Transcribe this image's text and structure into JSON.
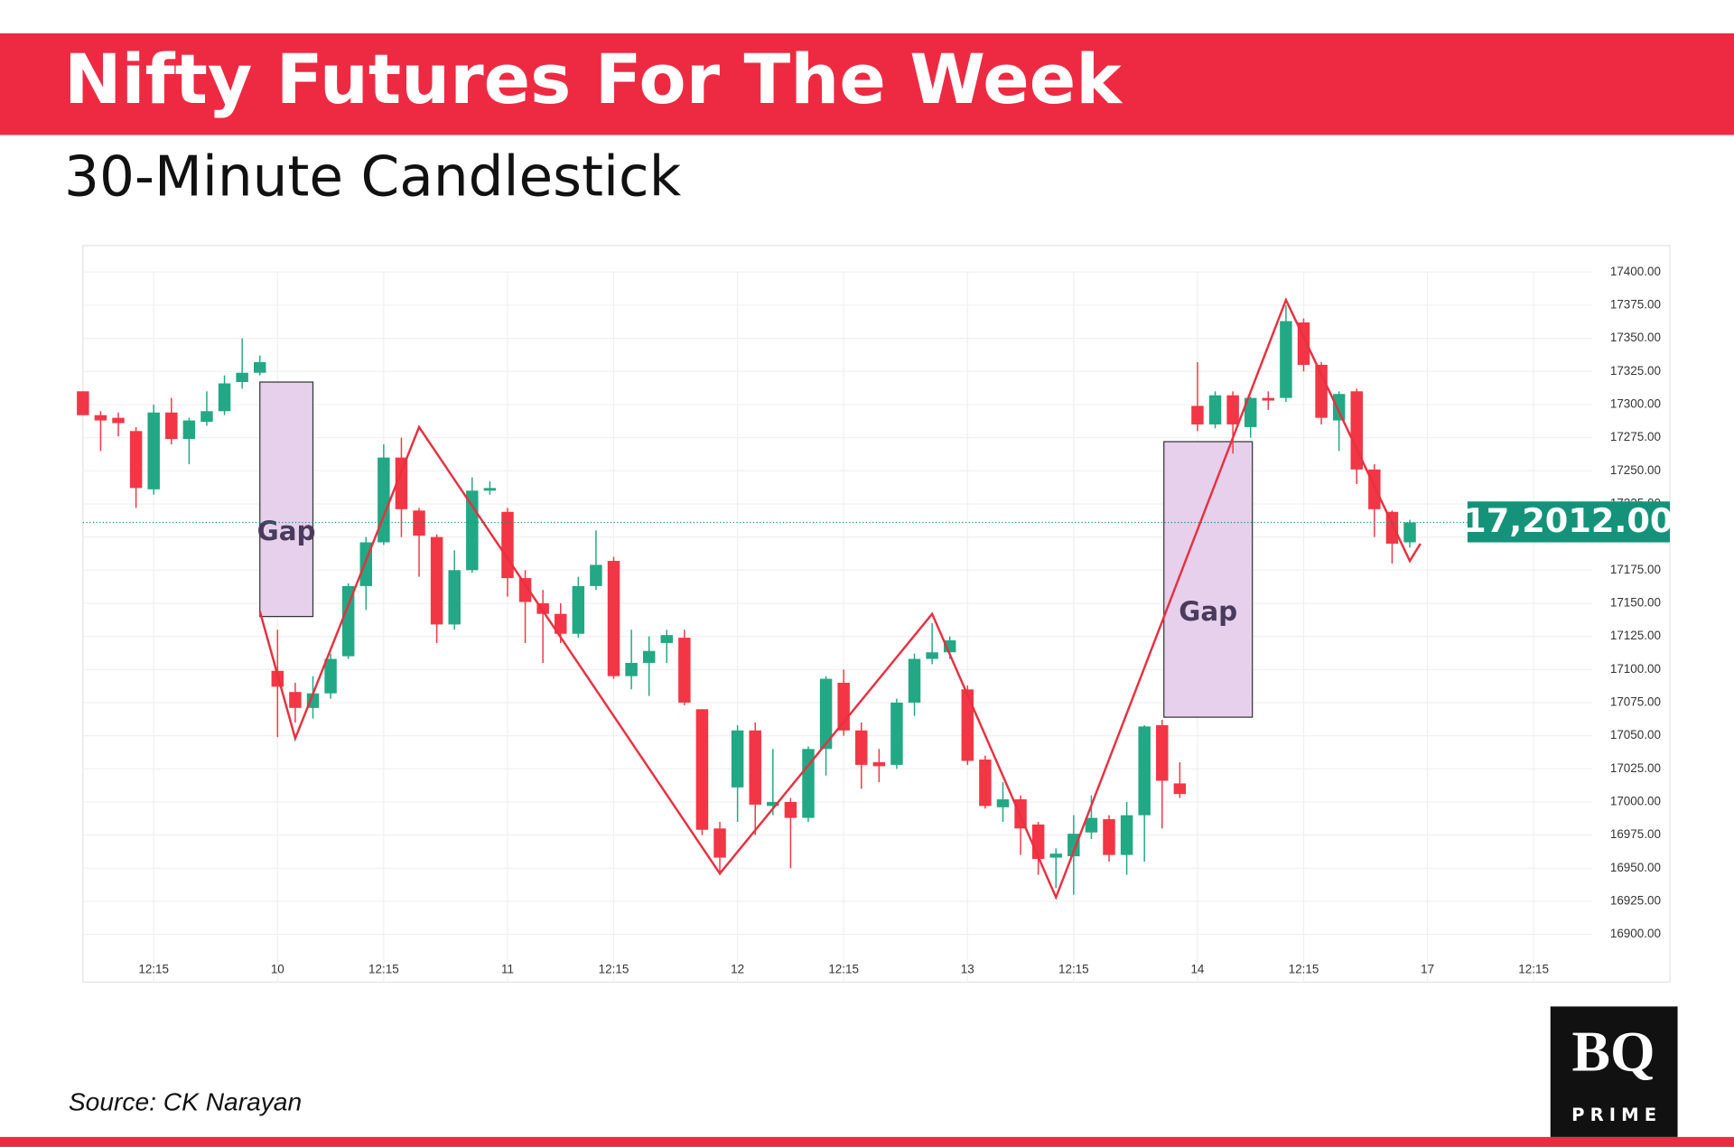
{
  "chart_data": {
    "type": "candlestick",
    "title": "Nifty Futures For The Week",
    "subtitle": "30-Minute Candlestick",
    "source": "Source: CK Narayan",
    "logo": {
      "line1": "BQ",
      "line2": "PRIME"
    },
    "price_label": "17,2012.00",
    "up_color": "#22a884",
    "down_color": "#f23645",
    "zigzag_color": "#e8303f",
    "price_color": "#14937a",
    "grid": true,
    "xlim": [
      0,
      89.7
    ],
    "ylim": [
      16864,
      17420
    ],
    "xticks": [
      {
        "value": 4,
        "label": "12:15"
      },
      {
        "value": 11,
        "label": "10"
      },
      {
        "value": 17,
        "label": "12:15"
      },
      {
        "value": 24,
        "label": "11"
      },
      {
        "value": 30,
        "label": "12:15"
      },
      {
        "value": 37,
        "label": "12"
      },
      {
        "value": 43,
        "label": "12:15"
      },
      {
        "value": 50,
        "label": "13"
      },
      {
        "value": 56,
        "label": "12:15"
      },
      {
        "value": 63,
        "label": "14"
      },
      {
        "value": 69,
        "label": "12:15"
      },
      {
        "value": 76,
        "label": "17"
      },
      {
        "value": 82,
        "label": "12:15"
      }
    ],
    "yticks": [
      {
        "value": 16900,
        "label": "16900.00"
      },
      {
        "value": 16925,
        "label": "16925.00"
      },
      {
        "value": 16950,
        "label": "16950.00"
      },
      {
        "value": 16975,
        "label": "16975.00"
      },
      {
        "value": 17000,
        "label": "17000.00"
      },
      {
        "value": 17025,
        "label": "17025.00"
      },
      {
        "value": 17050,
        "label": "17050.00"
      },
      {
        "value": 17075,
        "label": "17075.00"
      },
      {
        "value": 17100,
        "label": "17100.00"
      },
      {
        "value": 17125,
        "label": "17125.00"
      },
      {
        "value": 17150,
        "label": "17150.00"
      },
      {
        "value": 17175,
        "label": "17175.00"
      },
      {
        "value": 17200,
        "label": "17200.00"
      },
      {
        "value": 17225,
        "label": "17225.00"
      },
      {
        "value": 17250,
        "label": "17250.00"
      },
      {
        "value": 17275,
        "label": "17275.00"
      },
      {
        "value": 17300,
        "label": "17300.00"
      },
      {
        "value": 17325,
        "label": "17325.00"
      },
      {
        "value": 17350,
        "label": "17350.00"
      },
      {
        "value": 17375,
        "label": "17375.00"
      },
      {
        "value": 17400,
        "label": "17400.00"
      }
    ],
    "x": [
      0,
      1,
      2,
      3,
      4,
      5,
      6,
      7,
      8,
      9,
      10,
      11,
      12,
      13,
      14,
      15,
      16,
      17,
      18,
      19,
      20,
      21,
      22,
      23,
      24,
      25,
      26,
      27,
      28,
      29,
      30,
      31,
      32,
      33,
      34,
      35,
      36,
      37,
      38,
      39,
      40,
      41,
      42,
      43,
      44,
      45,
      46,
      47,
      48,
      49,
      50,
      51,
      52,
      53,
      54,
      55,
      56,
      57,
      58,
      59,
      60,
      61,
      62,
      63,
      64,
      65,
      66,
      67,
      68,
      69,
      70,
      71,
      72,
      73,
      74,
      75
    ],
    "open": [
      17310,
      17292,
      17290,
      17280,
      17236,
      17294,
      17274,
      17287,
      17295,
      17317,
      17324,
      17099,
      17083,
      17071,
      17082,
      17110,
      17163,
      17196,
      17260,
      17220,
      17200,
      17134,
      17175,
      17235,
      17219,
      17169,
      17150,
      17142,
      17127,
      17163,
      17182,
      17095,
      17105,
      17120,
      17124,
      17070,
      16980,
      17011,
      17054,
      16997,
      17000,
      16988,
      17040,
      17090,
      17054,
      17030,
      17028,
      17075,
      17108,
      17113,
      17085,
      17032,
      16996,
      17002,
      16983,
      16958,
      16959,
      16977,
      16987,
      16960,
      16990,
      17058,
      17014,
      17299,
      17285,
      17307,
      17283,
      17305,
      17305,
      17362,
      17330,
      17288,
      17310,
      17251,
      17219,
      17196
    ],
    "high": [
      17310,
      17295,
      17294,
      17283,
      17300,
      17305,
      17290,
      17310,
      17322,
      17350,
      17337,
      17130,
      17090,
      17095,
      17112,
      17165,
      17200,
      17270,
      17275,
      17222,
      17202,
      17190,
      17245,
      17242,
      17222,
      17175,
      17160,
      17150,
      17170,
      17205,
      17185,
      17130,
      17125,
      17130,
      17130,
      17070,
      16985,
      17058,
      17060,
      17040,
      17003,
      17042,
      17095,
      17100,
      17060,
      17040,
      17078,
      17112,
      17135,
      17125,
      17088,
      17035,
      17015,
      17005,
      16985,
      16965,
      16990,
      17005,
      16990,
      17000,
      17058,
      17062,
      17030,
      17332,
      17310,
      17310,
      17306,
      17310,
      17375,
      17365,
      17332,
      17310,
      17312,
      17255,
      17220,
      17213
    ],
    "low": [
      17292,
      17265,
      17276,
      17222,
      17232,
      17270,
      17255,
      17284,
      17292,
      17312,
      17322,
      17049,
      17060,
      17063,
      17078,
      17108,
      17145,
      17194,
      17200,
      17170,
      17120,
      17130,
      17173,
      17232,
      17155,
      17120,
      17105,
      17120,
      17124,
      17160,
      17093,
      17085,
      17080,
      17105,
      17073,
      16975,
      16945,
      16985,
      16975,
      16990,
      16950,
      16985,
      17020,
      17050,
      17010,
      17015,
      17025,
      17065,
      17104,
      17108,
      17028,
      16995,
      16985,
      16960,
      16945,
      16935,
      16930,
      16972,
      16955,
      16945,
      16955,
      16980,
      17003,
      17280,
      17282,
      17263,
      17275,
      17296,
      17302,
      17325,
      17285,
      17265,
      17240,
      17200,
      17180,
      17192
    ],
    "close": [
      17292,
      17288,
      17286,
      17237,
      17294,
      17274,
      17288,
      17295,
      17316,
      17324,
      17332,
      17087,
      17071,
      17082,
      17108,
      17163,
      17196,
      17260,
      17221,
      17201,
      17134,
      17175,
      17235,
      17237,
      17169,
      17151,
      17142,
      17127,
      17163,
      17179,
      17095,
      17105,
      17114,
      17126,
      17075,
      16979,
      16958,
      17054,
      16998,
      17000,
      16988,
      17040,
      17093,
      17054,
      17028,
      17027,
      17075,
      17108,
      17113,
      17122,
      17031,
      16997,
      17002,
      16980,
      16957,
      16961,
      16976,
      16988,
      16960,
      16990,
      17057,
      17016,
      17006,
      17285,
      17307,
      17285,
      17305,
      17303,
      17363,
      17330,
      17290,
      17308,
      17251,
      17221,
      17195,
      17211
    ],
    "zigzag": {
      "x": [
        10,
        12,
        19,
        36,
        48,
        55,
        68,
        75,
        75.6
      ],
      "values": [
        17144,
        17048,
        17283,
        16946,
        17142,
        16928,
        17379,
        17182,
        17195
      ]
    },
    "gaps": [
      {
        "label": "Gap",
        "x": [
          10,
          13
        ],
        "y": [
          17140,
          17317
        ]
      },
      {
        "label": "Gap",
        "x": [
          61.1,
          66.1
        ],
        "y": [
          17064,
          17272
        ]
      }
    ]
  }
}
